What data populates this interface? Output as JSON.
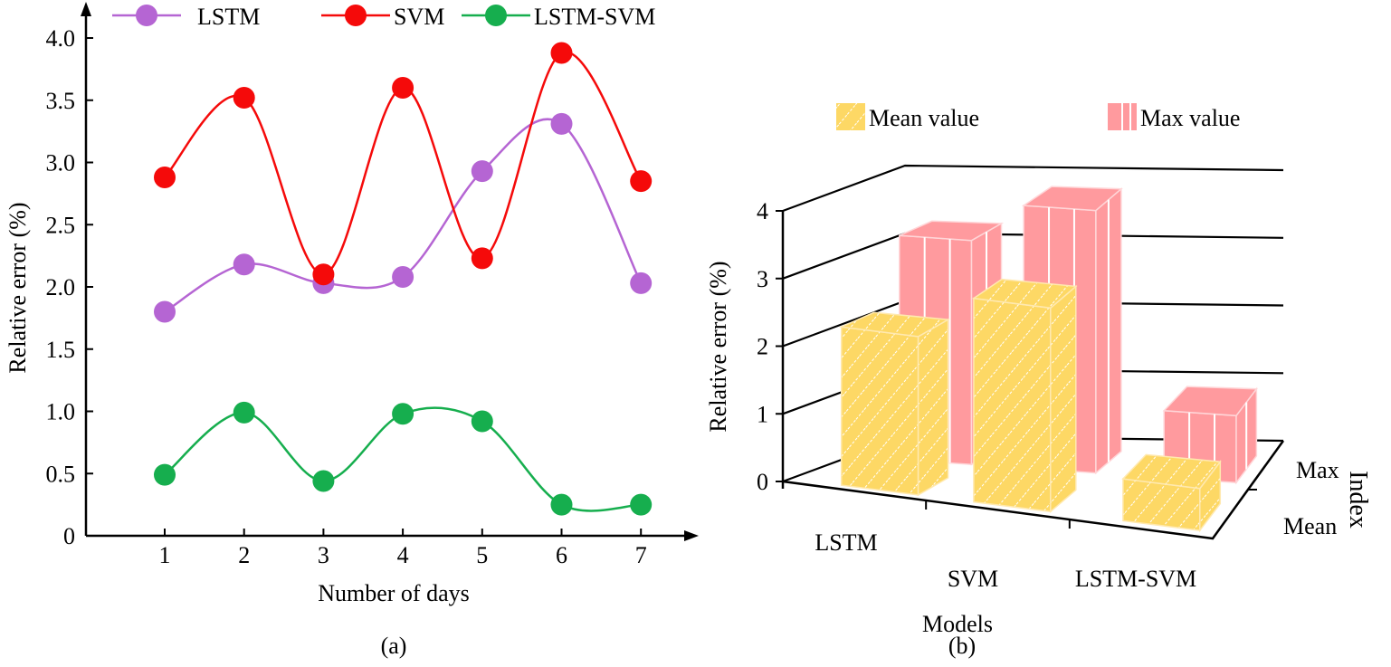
{
  "colors": {
    "LSTM": "#B565D3",
    "SVM": "#F50A0A",
    "LSTM-SVM": "#16AE4E",
    "mean_bar": "#FDD865",
    "max_bar": "#FF9A9E"
  },
  "chart_data": [
    {
      "type": "line",
      "caption": "(a)",
      "xlabel": "Number of days",
      "ylabel": "Relative error (%)",
      "x": [
        1,
        2,
        3,
        4,
        5,
        6,
        7
      ],
      "xticks": [
        "1",
        "2",
        "3",
        "4",
        "5",
        "6",
        "7"
      ],
      "yticks": [
        "0",
        "0.5",
        "1.0",
        "1.5",
        "2.0",
        "2.5",
        "3.0",
        "3.5",
        "4.0"
      ],
      "ylim": [
        0,
        4.0
      ],
      "legend_position": "top",
      "grid": false,
      "smooth": true,
      "series": [
        {
          "name": "LSTM",
          "values": [
            1.8,
            2.18,
            2.03,
            2.08,
            2.93,
            3.31,
            2.03
          ]
        },
        {
          "name": "SVM",
          "values": [
            2.88,
            3.52,
            2.1,
            3.6,
            2.23,
            3.88,
            2.85
          ]
        },
        {
          "name": "LSTM-SVM",
          "values": [
            0.49,
            0.99,
            0.44,
            0.98,
            0.92,
            0.25,
            0.25
          ]
        }
      ]
    },
    {
      "type": "bar",
      "style": "3d",
      "caption": "(b)",
      "xlabel": "Models",
      "ylabel": "Relative error (%)",
      "depth_label": "Index",
      "categories": [
        "LSTM",
        "SVM",
        "LSTM-SVM"
      ],
      "depth_categories": [
        "Mean",
        "Max"
      ],
      "yticks": [
        "0",
        "1",
        "2",
        "3",
        "4"
      ],
      "ylim": [
        0,
        4
      ],
      "grid": true,
      "legend_position": "top",
      "series": [
        {
          "name": "Mean value",
          "values": [
            2.34,
            3.01,
            0.62
          ]
        },
        {
          "name": "Max value",
          "values": [
            3.31,
            3.88,
            0.99
          ]
        }
      ]
    }
  ]
}
